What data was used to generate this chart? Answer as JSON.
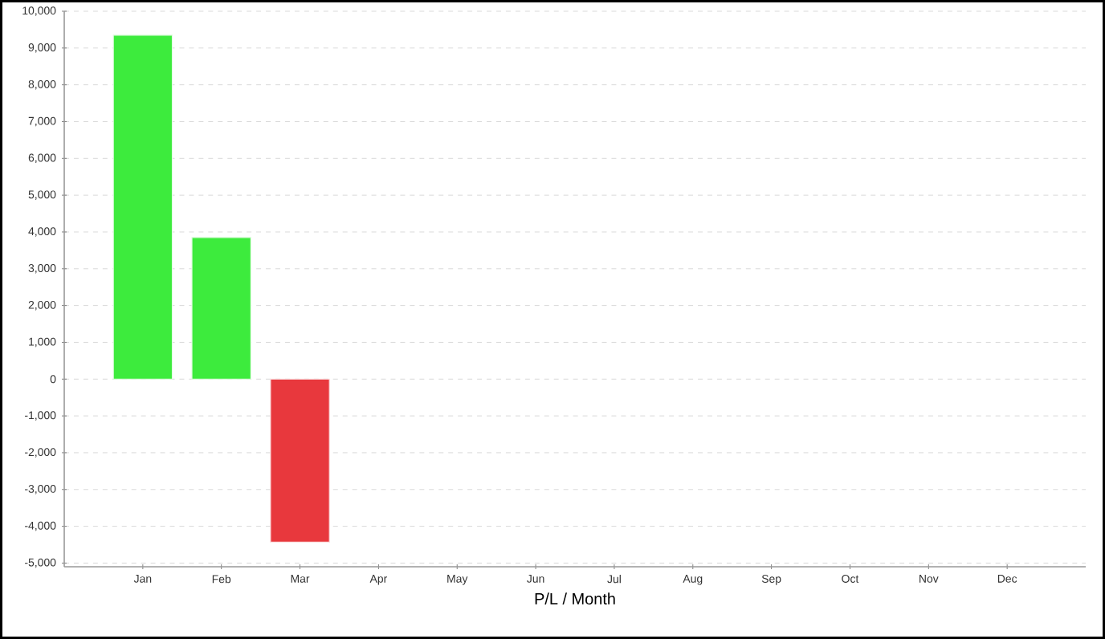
{
  "chart_data": {
    "type": "bar",
    "xlabel": "P/L / Month",
    "categories": [
      "Jan",
      "Feb",
      "Mar",
      "Apr",
      "May",
      "Jun",
      "Jul",
      "Aug",
      "Sep",
      "Oct",
      "Nov",
      "Dec"
    ],
    "values": [
      9350,
      3850,
      -4430,
      null,
      null,
      null,
      null,
      null,
      null,
      null,
      null,
      null
    ],
    "colors": [
      "#3deb3d",
      "#3deb3d",
      "#e8383d",
      null,
      null,
      null,
      null,
      null,
      null,
      null,
      null,
      null
    ],
    "ylim": [
      -5100,
      10000
    ],
    "yticks": [
      {
        "value": -5000,
        "label": "-5,000"
      },
      {
        "value": -4000,
        "label": "-4,000"
      },
      {
        "value": -3000,
        "label": "-3,000"
      },
      {
        "value": -2000,
        "label": "-2,000"
      },
      {
        "value": -1000,
        "label": "-1,000"
      },
      0,
      {
        "value": 1000,
        "label": "1,000"
      },
      {
        "value": 2000,
        "label": "2,000"
      },
      {
        "value": 3000,
        "label": "3,000"
      },
      {
        "value": 4000,
        "label": "4,000"
      },
      {
        "value": 5000,
        "label": "5,000"
      },
      {
        "value": 6000,
        "label": "6,000"
      },
      {
        "value": 7000,
        "label": "7,000"
      },
      {
        "value": 8000,
        "label": "8,000"
      },
      {
        "value": 9000,
        "label": "9,000"
      },
      {
        "value": 10000,
        "label": "10,000"
      }
    ],
    "grid": "y"
  }
}
